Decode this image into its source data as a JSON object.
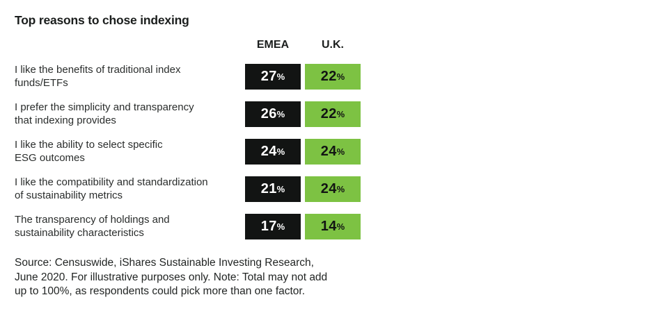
{
  "title": "Top reasons to chose indexing",
  "columns": [
    {
      "label": "EMEA"
    },
    {
      "label": "U.K."
    }
  ],
  "percent_sign": "%",
  "rows": [
    {
      "label_lines": [
        "I like the benefits of traditional index",
        "funds/ETFs"
      ],
      "emea": "27",
      "uk": "22"
    },
    {
      "label_lines": [
        "I prefer the simplicity and transparency",
        "that indexing provides"
      ],
      "emea": "26",
      "uk": "22"
    },
    {
      "label_lines": [
        "I like the ability to select specific",
        "ESG outcomes"
      ],
      "emea": "24",
      "uk": "24"
    },
    {
      "label_lines": [
        "I like the compatibility and standardization",
        "of sustainability metrics"
      ],
      "emea": "21",
      "uk": "24"
    },
    {
      "label_lines": [
        "The transparency of holdings and",
        "sustainability characteristics"
      ],
      "emea": "17",
      "uk": "14"
    }
  ],
  "source_lines": [
    "Source: Censuswide, iShares Sustainable Investing Research,",
    "June 2020. For illustrative purposes only. Note: Total may not add",
    "up to 100%, as respondents could pick more than one factor."
  ],
  "colors": {
    "emea_badge": "#121413",
    "emea_text": "#ffffff",
    "uk_badge": "#7DC243",
    "uk_text": "#121413"
  },
  "chart_data": {
    "type": "table",
    "title": "Top reasons to chose indexing",
    "categories": [
      "I like the benefits of traditional index funds/ETFs",
      "I prefer the simplicity and transparency that indexing provides",
      "I like the ability to select specific ESG outcomes",
      "I like the compatibility and standardization of sustainability metrics",
      "The transparency of holdings and sustainability characteristics"
    ],
    "series": [
      {
        "name": "EMEA",
        "values": [
          27,
          26,
          24,
          21,
          17
        ]
      },
      {
        "name": "U.K.",
        "values": [
          22,
          22,
          24,
          24,
          14
        ]
      }
    ],
    "unit": "%",
    "note": "Source: Censuswide, iShares Sustainable Investing Research, June 2020. For illustrative purposes only. Note: Total may not add up to 100%, as respondents could pick more than one factor."
  }
}
